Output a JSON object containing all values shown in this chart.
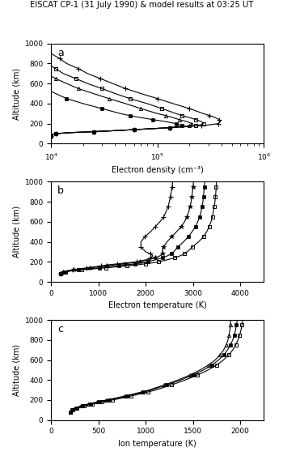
{
  "title": "EISCAT CP-1 (31 July 1990) & model results at 03:25 UT",
  "panel_labels": [
    "a",
    "b",
    "c"
  ],
  "altitudes": [
    80,
    90,
    100,
    110,
    120,
    130,
    140,
    150,
    160,
    170,
    180,
    190,
    200,
    220,
    240,
    260,
    280,
    300,
    350,
    400,
    450,
    500,
    550,
    600,
    650,
    700,
    750,
    800,
    850,
    900,
    950,
    1000
  ],
  "ne_eiscat": [
    10000.0,
    10000.0,
    11000.0,
    15000.0,
    25000.0,
    40000.0,
    60000.0,
    90000.0,
    130000.0,
    160000.0,
    170000.0,
    160000.0,
    150000.0,
    120000.0,
    90000.0,
    70000.0,
    55000.0,
    45000.0,
    30000.0,
    20000.0,
    14000.0,
    11000.0,
    9000.0,
    8000.0,
    7000.0,
    6500.0,
    6000.0,
    5500.0,
    5000.0,
    4500.0,
    4000.0,
    3500.0
  ],
  "ne_triangles": [
    10000.0,
    10000.0,
    11000.0,
    15000.0,
    25000.0,
    40000.0,
    60000.0,
    90000.0,
    130000.0,
    170000.0,
    200000.0,
    210000.0,
    210000.0,
    190000.0,
    160000.0,
    140000.0,
    120000.0,
    100000.0,
    70000.0,
    50000.0,
    35000.0,
    25000.0,
    18000.0,
    14000.0,
    11000.0,
    9000.0,
    8000.0,
    7000.0,
    6500.0,
    6000.0,
    5500.0,
    5000.0
  ],
  "ne_open_sq": [
    10000.0,
    10000.0,
    11000.0,
    15000.0,
    25000.0,
    40000.0,
    60000.0,
    90000.0,
    130000.0,
    180000.0,
    230000.0,
    260000.0,
    270000.0,
    260000.0,
    230000.0,
    200000.0,
    170000.0,
    150000.0,
    110000.0,
    80000.0,
    55000.0,
    40000.0,
    30000.0,
    22000.0,
    17000.0,
    13000.0,
    11000.0,
    9000.0,
    8000.0,
    7000.0,
    6500.0,
    6000.0
  ],
  "ne_plus": [
    10000.0,
    10000.0,
    11000.0,
    15000.0,
    25000.0,
    40000.0,
    60000.0,
    90000.0,
    130000.0,
    190000.0,
    260000.0,
    320000.0,
    370000.0,
    390000.0,
    380000.0,
    350000.0,
    310000.0,
    270000.0,
    200000.0,
    140000.0,
    100000.0,
    70000.0,
    50000.0,
    38000.0,
    29000.0,
    22000.0,
    18000.0,
    14000.0,
    12000.0,
    10000.0,
    9000.0,
    8000.0
  ],
  "te_plus": [
    200,
    220,
    260,
    330,
    450,
    600,
    750,
    900,
    1050,
    1200,
    1400,
    1600,
    1800,
    2000,
    2100,
    2150,
    2100,
    2000,
    1900,
    1900,
    1980,
    2100,
    2200,
    2300,
    2380,
    2430,
    2470,
    2500,
    2520,
    2540,
    2560,
    2570
  ],
  "te_asterisk": [
    200,
    220,
    260,
    340,
    480,
    650,
    820,
    1000,
    1180,
    1360,
    1550,
    1720,
    1880,
    2050,
    2200,
    2300,
    2350,
    2350,
    2380,
    2450,
    2550,
    2650,
    2750,
    2820,
    2870,
    2910,
    2940,
    2960,
    2975,
    2990,
    3000,
    3010
  ],
  "te_filled_sq": [
    200,
    230,
    290,
    400,
    580,
    800,
    1020,
    1230,
    1430,
    1610,
    1780,
    1920,
    2040,
    2200,
    2350,
    2460,
    2540,
    2590,
    2680,
    2800,
    2900,
    2980,
    3050,
    3100,
    3140,
    3170,
    3190,
    3210,
    3220,
    3230,
    3240,
    3250
  ],
  "te_open_sq": [
    200,
    240,
    310,
    440,
    650,
    900,
    1150,
    1390,
    1610,
    1810,
    1990,
    2140,
    2270,
    2450,
    2610,
    2730,
    2820,
    2880,
    2990,
    3120,
    3220,
    3290,
    3340,
    3380,
    3410,
    3430,
    3450,
    3465,
    3475,
    3485,
    3490,
    3495
  ],
  "ti_filled_sq": [
    200,
    210,
    220,
    240,
    265,
    295,
    330,
    370,
    415,
    460,
    510,
    560,
    610,
    710,
    800,
    890,
    975,
    1055,
    1220,
    1370,
    1500,
    1610,
    1700,
    1770,
    1825,
    1865,
    1895,
    1920,
    1938,
    1950,
    1960,
    1968
  ],
  "ti_open_sq": [
    200,
    212,
    225,
    248,
    275,
    308,
    346,
    390,
    438,
    487,
    540,
    593,
    645,
    748,
    843,
    935,
    1022,
    1104,
    1270,
    1418,
    1548,
    1659,
    1750,
    1822,
    1878,
    1920,
    1952,
    1976,
    1994,
    2008,
    2018,
    2026
  ],
  "ti_triangles": [
    200,
    210,
    218,
    232,
    252,
    278,
    310,
    348,
    390,
    435,
    483,
    533,
    583,
    682,
    776,
    866,
    952,
    1033,
    1195,
    1340,
    1468,
    1575,
    1663,
    1734,
    1786,
    1824,
    1851,
    1870,
    1882,
    1890,
    1895,
    1898
  ],
  "panel_a": {
    "xlabel": "Electron density (cm⁻³)",
    "xlim_log": [
      4,
      6
    ],
    "ylabel": "Altitude (km)"
  },
  "panel_b": {
    "xlabel": "Electron temperature (K)",
    "xlim": [
      0,
      4500
    ],
    "xticks": [
      0,
      1000,
      2000,
      3000,
      4000
    ],
    "ylabel": "Altitude (km)"
  },
  "panel_c": {
    "xlabel": "Ion temperature (K)",
    "xlim": [
      0,
      2250
    ],
    "xticks": [
      0,
      500,
      1000,
      1500,
      2000
    ],
    "ylabel": "Altitude (km)"
  }
}
